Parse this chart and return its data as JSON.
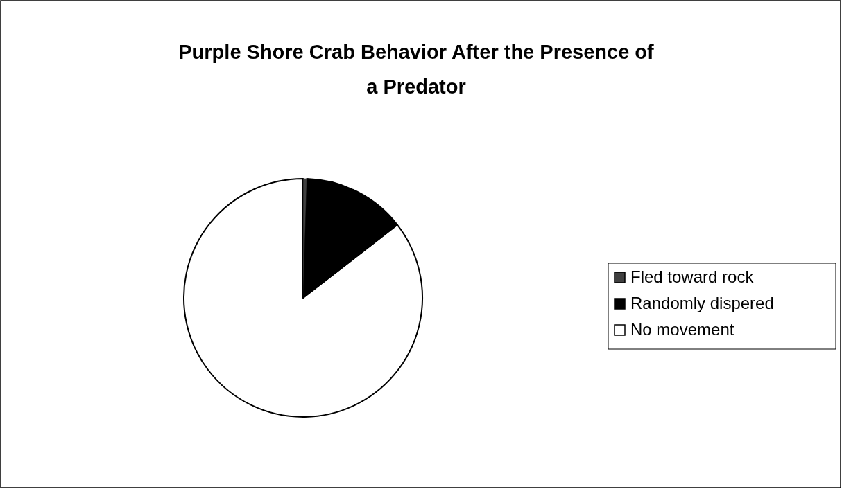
{
  "chart_data": {
    "type": "pie",
    "title": "Purple Shore Crab Behavior After the Presence of a Predator",
    "categories": [
      "Fled toward rock",
      "Randomly dispered",
      "No movement"
    ],
    "values": [
      0.5,
      14,
      85.5
    ],
    "colors": [
      "#404040",
      "#000000",
      "#ffffff"
    ],
    "legend": "right"
  }
}
